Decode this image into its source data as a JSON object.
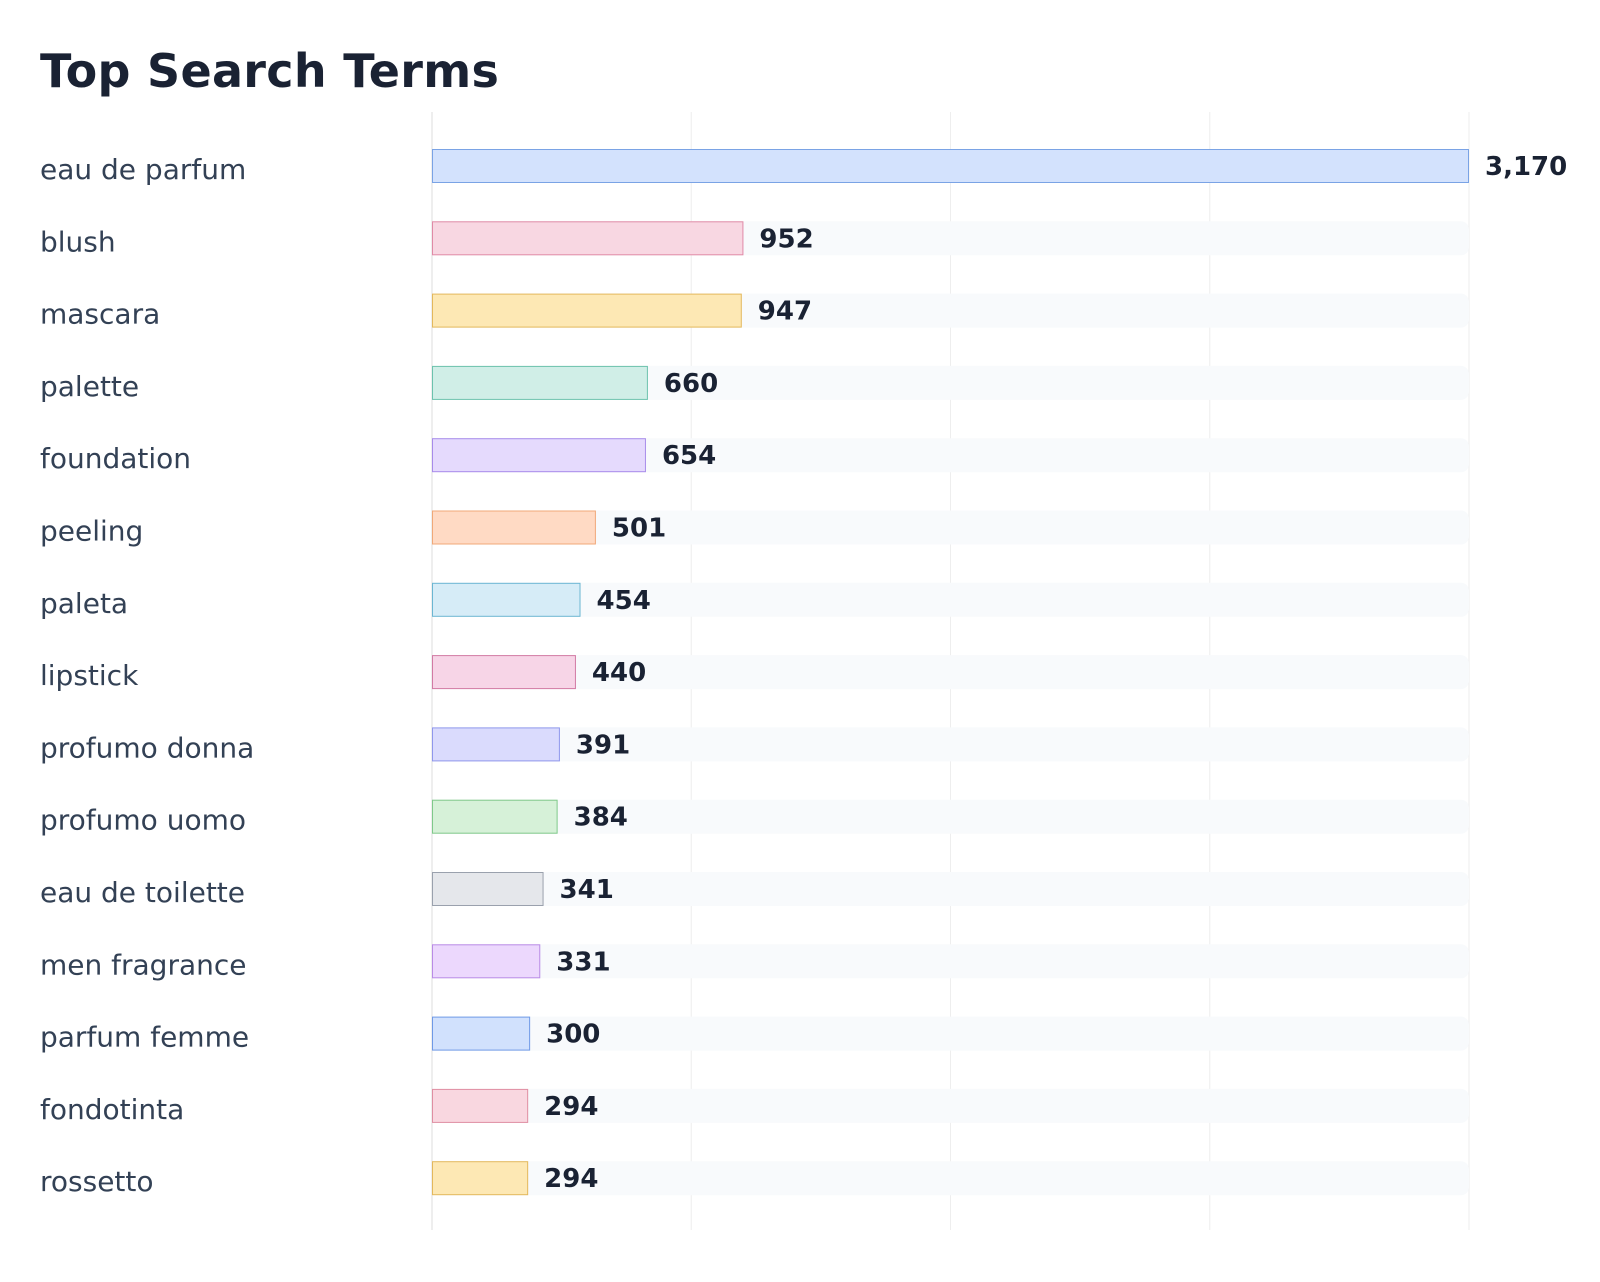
{
  "chart_data": {
    "type": "bar",
    "orientation": "horizontal",
    "title": "Top Search Terms",
    "xlabel": "",
    "ylabel": "",
    "xlim": [
      0,
      3170
    ],
    "grid": true,
    "legend": "none",
    "categories": [
      "eau de parfum",
      "blush",
      "mascara",
      "palette",
      "foundation",
      "peeling",
      "paleta",
      "lipstick",
      "profumo donna",
      "profumo uomo",
      "eau de toilette",
      "men fragrance",
      "parfum femme",
      "fondotinta",
      "rossetto"
    ],
    "values": [
      3170,
      952,
      947,
      660,
      654,
      501,
      454,
      440,
      391,
      384,
      341,
      331,
      300,
      294,
      294
    ],
    "value_labels": [
      "3,170",
      "952",
      "947",
      "660",
      "654",
      "501",
      "454",
      "440",
      "391",
      "384",
      "341",
      "331",
      "300",
      "294",
      "294"
    ],
    "bar_fill_colors": [
      "#d3e2fd",
      "#f8d7e2",
      "#fde8b4",
      "#d0eee7",
      "#e5dafd",
      "#ffdac4",
      "#d6ecf7",
      "#f7d5e7",
      "#dadbfd",
      "#d6f1d8",
      "#e5e7eb",
      "#ecd8fd",
      "#d1e1fd",
      "#f9d7e0",
      "#fde8b4"
    ],
    "bar_stroke_colors": [
      "#7aa3e5",
      "#e08aa6",
      "#e3b85c",
      "#6cc2ad",
      "#a78bea",
      "#f0a878",
      "#6bb6d2",
      "#d27aa4",
      "#8f97ec",
      "#7fc98a",
      "#9aa1ad",
      "#b98be6",
      "#6f99e6",
      "#df8ea2",
      "#e3b85c"
    ],
    "track_color": "#f8fafc",
    "grid_color": "#eeeeee"
  }
}
